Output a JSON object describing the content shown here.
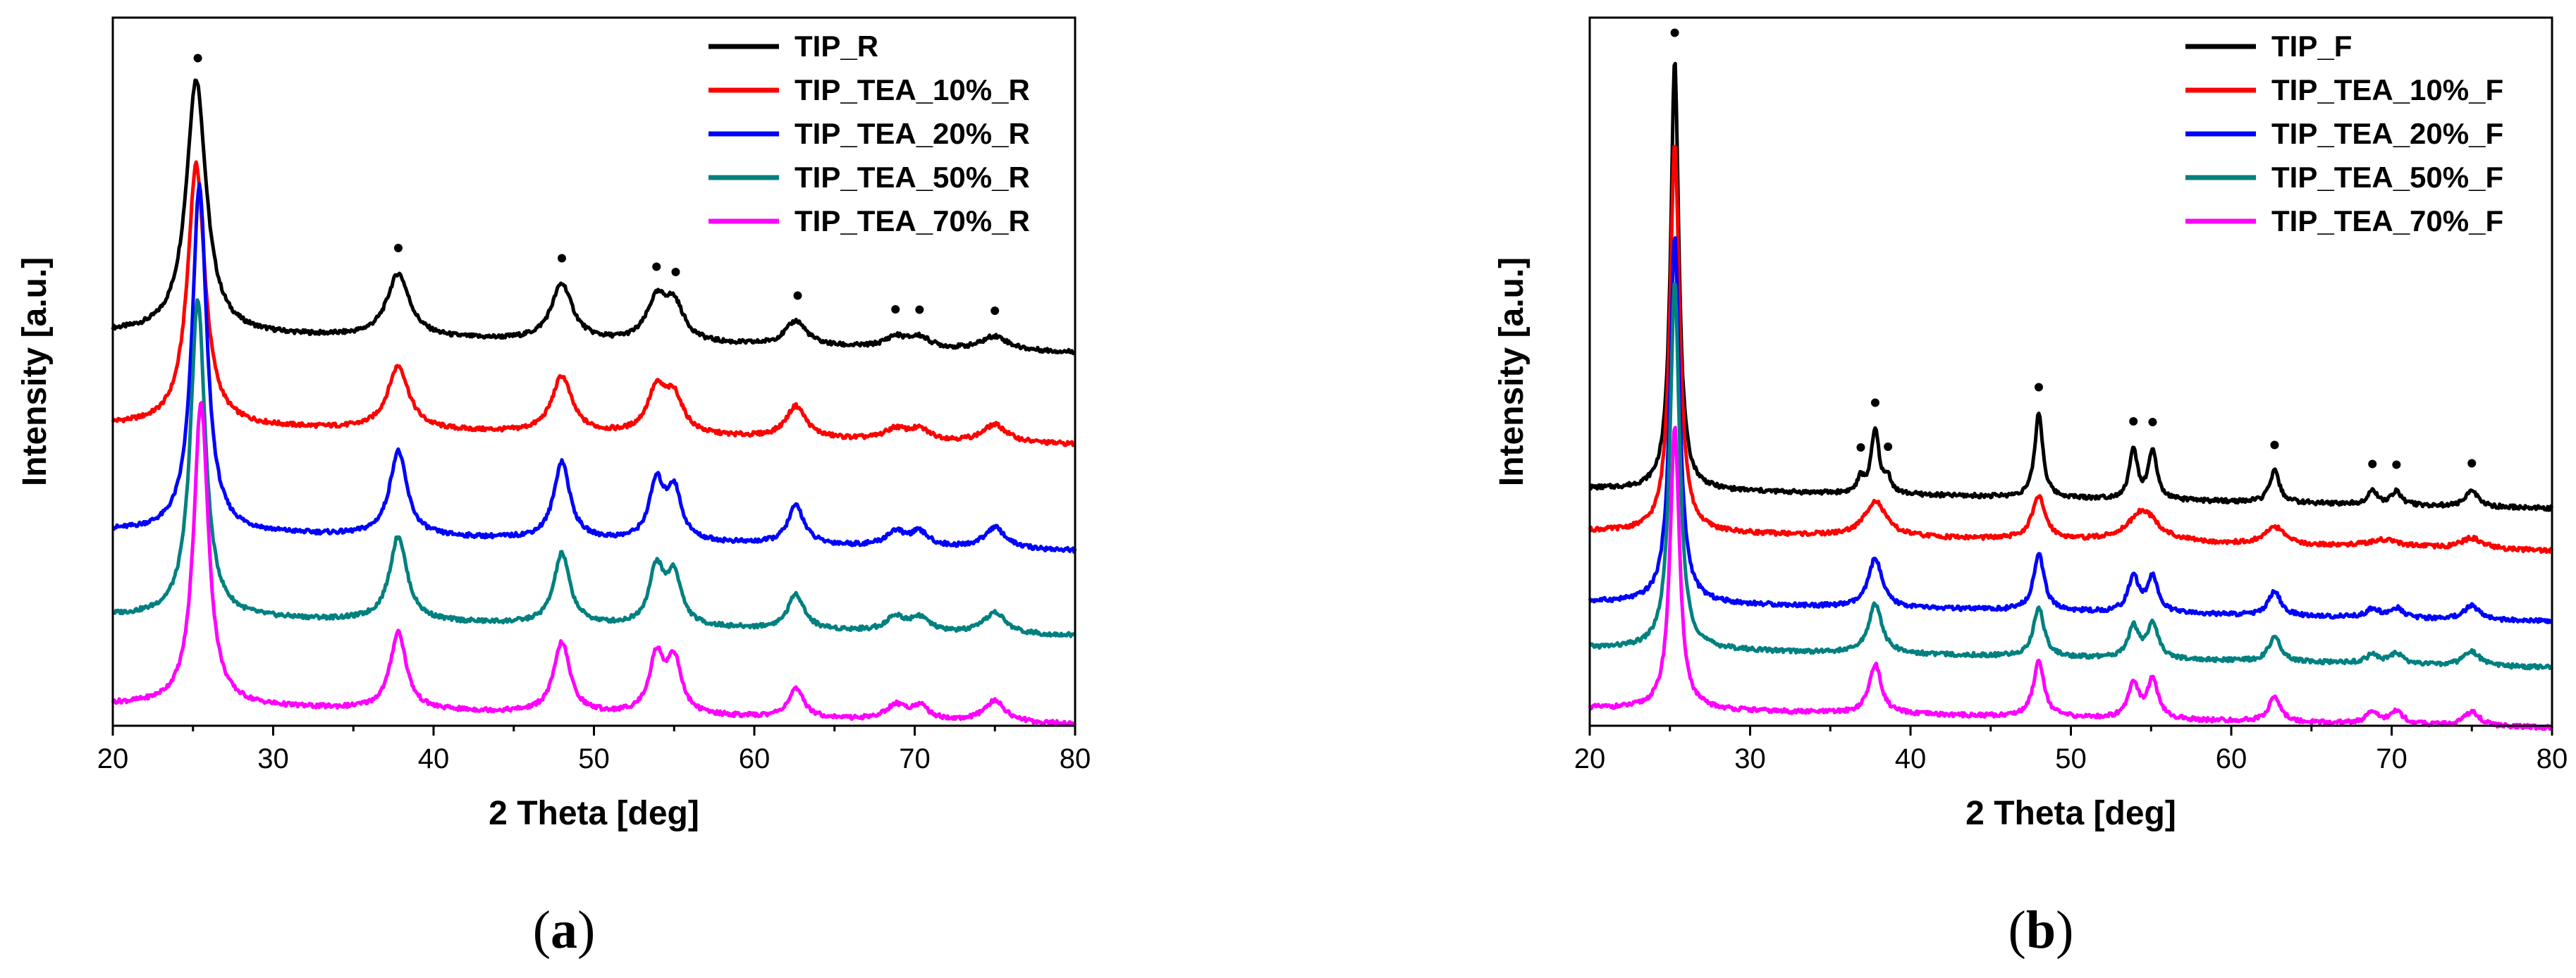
{
  "chart_data": [
    {
      "type": "line",
      "panel": "a",
      "caption_open": "(",
      "caption_letter": "a",
      "caption_close": ")",
      "xlabel": "2 Theta [deg]",
      "ylabel": "Intensity [a.u.]",
      "xlim": [
        20,
        80
      ],
      "xticks": [
        20,
        30,
        40,
        50,
        60,
        70,
        80
      ],
      "yticks_shown": false,
      "legend_position": "top-right",
      "markers": {
        "symbol": "•",
        "x": [
          25.3,
          37.8,
          48.0,
          53.9,
          55.1,
          62.7,
          68.8,
          70.3,
          75.0
        ]
      },
      "series": [
        {
          "name": "TIP_R",
          "color": "#000000",
          "baseline": 0.555,
          "peaks": [
            [
              25.2,
              0.36,
              0.75
            ],
            [
              37.8,
              0.09,
              0.85
            ],
            [
              48.0,
              0.08,
              0.8
            ],
            [
              53.9,
              0.055,
              0.75
            ],
            [
              55.0,
              0.05,
              0.75
            ],
            [
              62.6,
              0.035,
              0.8
            ],
            [
              68.8,
              0.015,
              0.8
            ],
            [
              70.3,
              0.015,
              0.8
            ],
            [
              75.0,
              0.02,
              1.0
            ]
          ]
        },
        {
          "name": "TIP_TEA_10%_R",
          "color": "#ff0000",
          "baseline": 0.425,
          "peaks": [
            [
              25.2,
              0.37,
              0.65
            ],
            [
              37.8,
              0.09,
              0.8
            ],
            [
              48.0,
              0.08,
              0.75
            ],
            [
              53.9,
              0.06,
              0.7
            ],
            [
              55.0,
              0.05,
              0.7
            ],
            [
              62.6,
              0.045,
              0.75
            ],
            [
              68.8,
              0.015,
              0.8
            ],
            [
              70.3,
              0.015,
              0.8
            ],
            [
              75.0,
              0.025,
              0.9
            ]
          ]
        },
        {
          "name": "TIP_TEA_20%_R",
          "color": "#0000ff",
          "baseline": 0.275,
          "peaks": [
            [
              25.4,
              0.49,
              0.55
            ],
            [
              37.8,
              0.12,
              0.65
            ],
            [
              48.0,
              0.11,
              0.6
            ],
            [
              53.9,
              0.08,
              0.55
            ],
            [
              55.0,
              0.07,
              0.55
            ],
            [
              62.6,
              0.055,
              0.6
            ],
            [
              68.8,
              0.02,
              0.7
            ],
            [
              70.3,
              0.02,
              0.7
            ],
            [
              75.0,
              0.03,
              0.8
            ]
          ]
        },
        {
          "name": "TIP_TEA_50%_R",
          "color": "#008080",
          "baseline": 0.155,
          "peaks": [
            [
              25.3,
              0.45,
              0.55
            ],
            [
              37.8,
              0.12,
              0.65
            ],
            [
              48.0,
              0.1,
              0.6
            ],
            [
              53.9,
              0.08,
              0.55
            ],
            [
              55.0,
              0.07,
              0.55
            ],
            [
              62.6,
              0.05,
              0.6
            ],
            [
              68.8,
              0.02,
              0.7
            ],
            [
              70.3,
              0.02,
              0.7
            ],
            [
              75.0,
              0.03,
              0.8
            ]
          ]
        },
        {
          "name": "TIP_TEA_70%_R",
          "color": "#ff00ff",
          "baseline": 0.03,
          "peaks": [
            [
              25.5,
              0.43,
              0.55
            ],
            [
              37.8,
              0.11,
              0.6
            ],
            [
              48.0,
              0.1,
              0.6
            ],
            [
              53.9,
              0.08,
              0.55
            ],
            [
              55.0,
              0.075,
              0.55
            ],
            [
              62.6,
              0.04,
              0.6
            ],
            [
              68.8,
              0.02,
              0.7
            ],
            [
              70.3,
              0.02,
              0.7
            ],
            [
              75.0,
              0.03,
              0.8
            ]
          ]
        }
      ]
    },
    {
      "type": "line",
      "panel": "b",
      "caption_open": "(",
      "caption_letter": "b",
      "caption_close": ")",
      "xlabel": "2 Theta [deg]",
      "ylabel": "Intensity [a.u.]",
      "xlim": [
        20,
        80
      ],
      "xticks": [
        20,
        30,
        40,
        50,
        60,
        70,
        80
      ],
      "yticks_shown": false,
      "legend_position": "top-right",
      "markers": {
        "symbol": "•",
        "x": [
          25.3,
          36.9,
          37.8,
          38.6,
          48.0,
          53.9,
          55.1,
          62.7,
          68.8,
          70.3,
          75.0
        ]
      },
      "series": [
        {
          "name": "TIP_F",
          "color": "#000000",
          "baseline": 0.335,
          "peaks": [
            [
              25.3,
              0.61,
              0.3
            ],
            [
              36.9,
              0.02,
              0.25
            ],
            [
              37.8,
              0.09,
              0.3
            ],
            [
              38.6,
              0.02,
              0.25
            ],
            [
              48.0,
              0.12,
              0.3
            ],
            [
              53.9,
              0.07,
              0.3
            ],
            [
              55.1,
              0.07,
              0.3
            ],
            [
              62.7,
              0.045,
              0.35
            ],
            [
              68.8,
              0.02,
              0.35
            ],
            [
              70.3,
              0.02,
              0.35
            ],
            [
              75.0,
              0.025,
              0.4
            ]
          ]
        },
        {
          "name": "TIP_TEA_10%_F",
          "color": "#ff0000",
          "baseline": 0.275,
          "peaks": [
            [
              25.3,
              0.55,
              0.35
            ],
            [
              37.8,
              0.05,
              0.8
            ],
            [
              48.0,
              0.06,
              0.5
            ],
            [
              54.5,
              0.045,
              1.1
            ],
            [
              62.7,
              0.025,
              0.7
            ],
            [
              69.5,
              0.01,
              1.2
            ],
            [
              75.0,
              0.015,
              0.8
            ]
          ]
        },
        {
          "name": "TIP_TEA_20%_F",
          "color": "#0000ff",
          "baseline": 0.175,
          "peaks": [
            [
              25.3,
              0.52,
              0.35
            ],
            [
              37.8,
              0.07,
              0.5
            ],
            [
              48.0,
              0.08,
              0.4
            ],
            [
              53.9,
              0.05,
              0.4
            ],
            [
              55.1,
              0.05,
              0.4
            ],
            [
              62.7,
              0.035,
              0.45
            ],
            [
              68.8,
              0.012,
              0.5
            ],
            [
              70.3,
              0.014,
              0.5
            ],
            [
              75.0,
              0.02,
              0.6
            ]
          ]
        },
        {
          "name": "TIP_TEA_50%_F",
          "color": "#008080",
          "baseline": 0.11,
          "peaks": [
            [
              25.3,
              0.52,
              0.35
            ],
            [
              37.8,
              0.07,
              0.5
            ],
            [
              48.0,
              0.07,
              0.4
            ],
            [
              53.9,
              0.045,
              0.4
            ],
            [
              55.1,
              0.05,
              0.4
            ],
            [
              62.7,
              0.035,
              0.45
            ],
            [
              68.8,
              0.012,
              0.5
            ],
            [
              70.3,
              0.014,
              0.5
            ],
            [
              75.0,
              0.02,
              0.6
            ]
          ]
        },
        {
          "name": "TIP_TEA_70%_F",
          "color": "#ff00ff",
          "baseline": 0.025,
          "peaks": [
            [
              25.3,
              0.4,
              0.35
            ],
            [
              37.8,
              0.07,
              0.45
            ],
            [
              48.0,
              0.08,
              0.4
            ],
            [
              53.9,
              0.05,
              0.4
            ],
            [
              55.1,
              0.055,
              0.4
            ],
            [
              62.7,
              0.035,
              0.45
            ],
            [
              68.8,
              0.015,
              0.5
            ],
            [
              70.3,
              0.018,
              0.5
            ],
            [
              75.0,
              0.02,
              0.6
            ]
          ]
        }
      ]
    }
  ]
}
